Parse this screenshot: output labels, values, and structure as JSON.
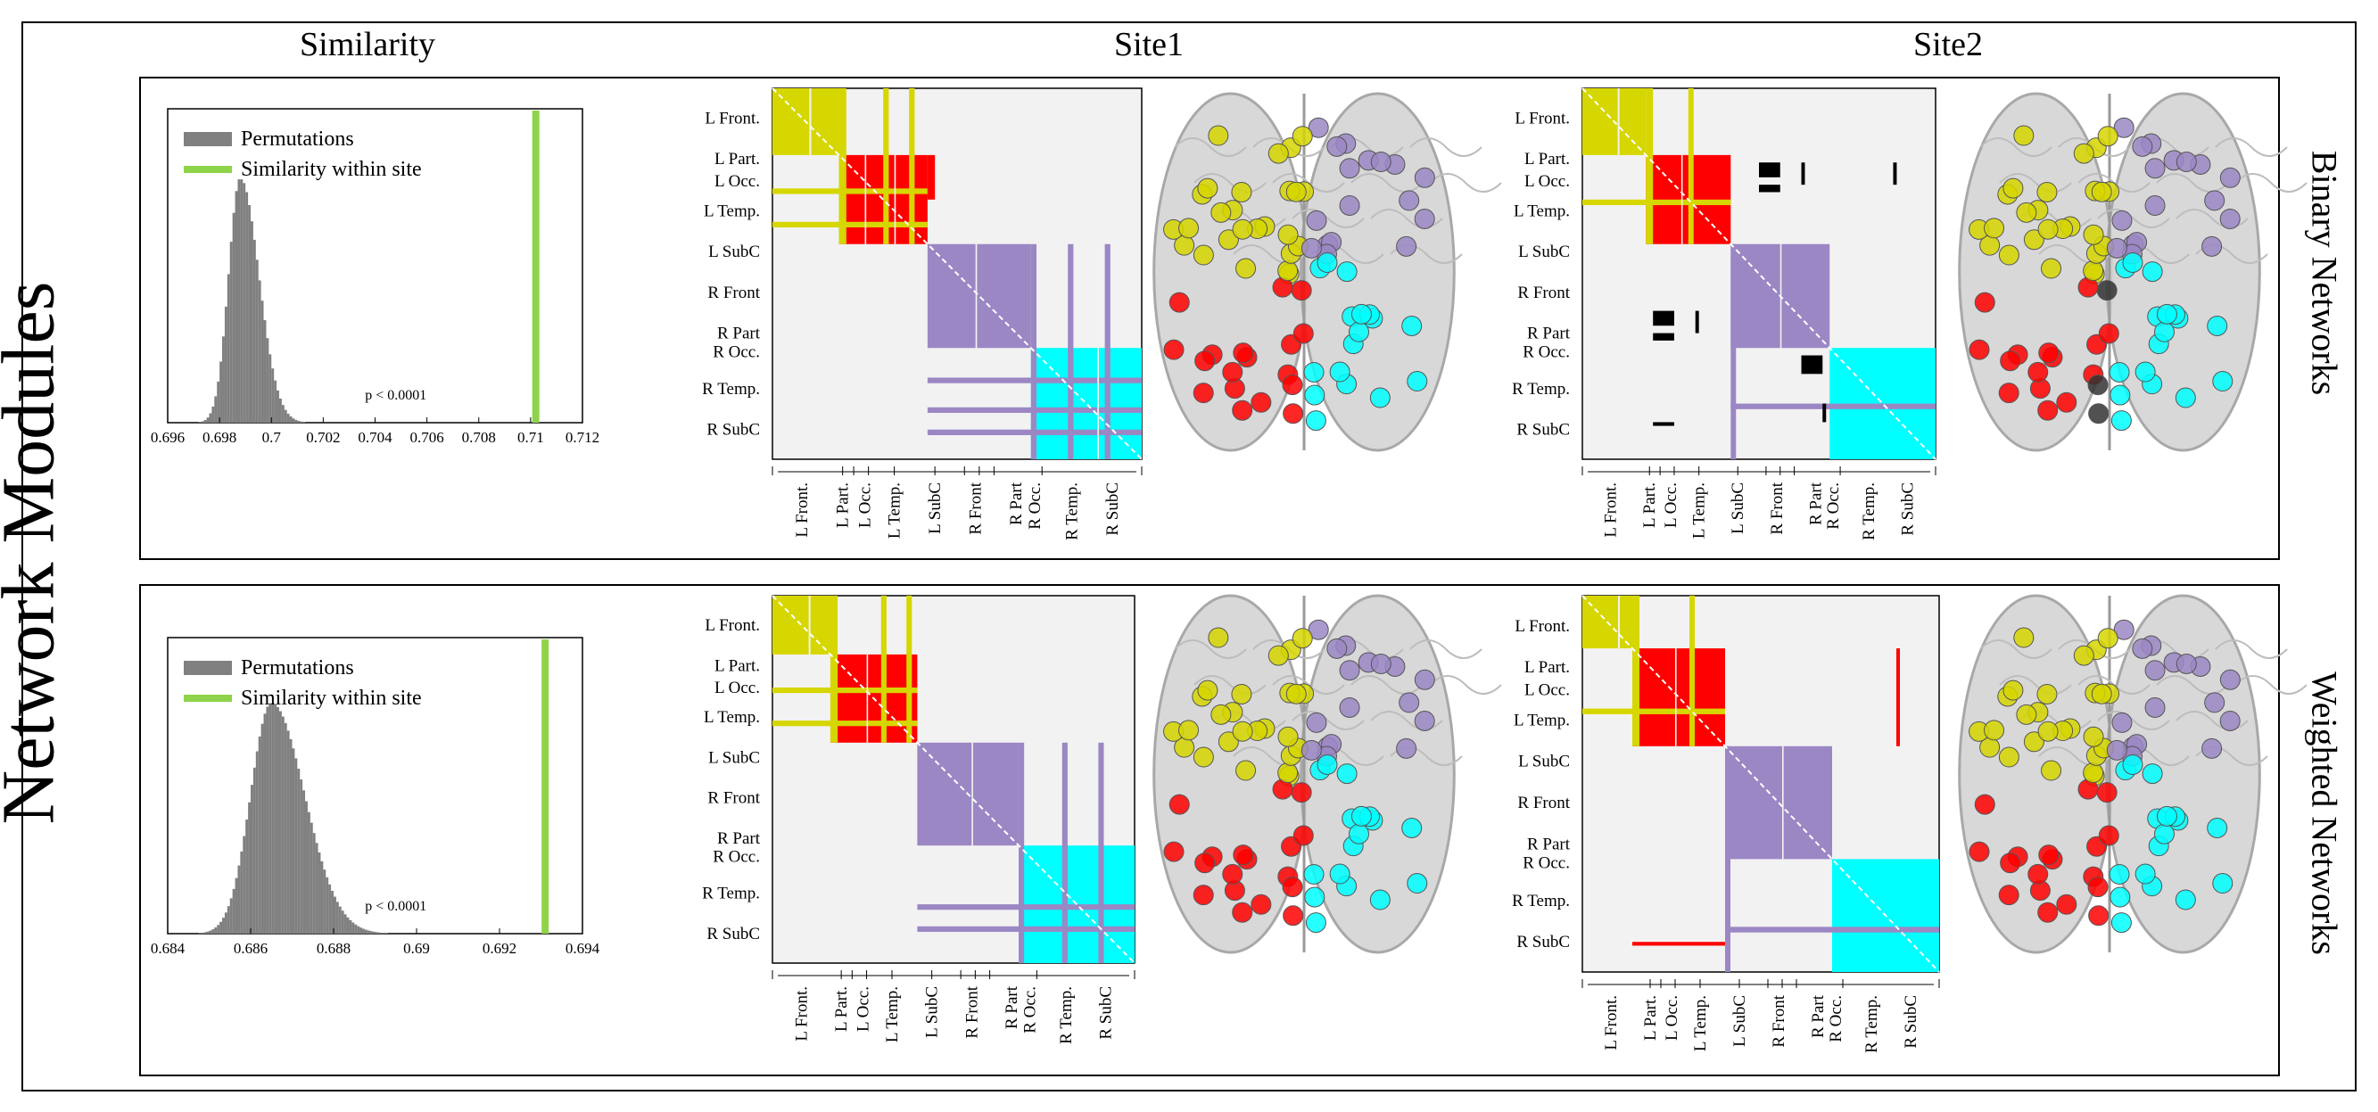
{
  "figure": {
    "title": "Network Modules",
    "columns": {
      "similarity": "Similarity",
      "site1": "Site1",
      "site2": "Site2"
    },
    "rows": [
      "Binary Networks",
      "Weighted Networks"
    ],
    "module_labels": [
      "L Front.",
      "L  Part.",
      "L Occ.",
      "L Temp.",
      "L SubC",
      "R Front",
      "R  Part",
      "R Occ.",
      "R Temp.",
      "R SubC"
    ],
    "module_colors": {
      "left_frontal": "#d6d600",
      "left_posterior": "#ff0000",
      "right_frontal": "#9b87c4",
      "right_posterior": "#00ffff",
      "between_site": "#000000",
      "background": "#f2f2f2"
    }
  },
  "chart_data": [
    {
      "type": "histogram",
      "row": "Binary Networks",
      "legend": [
        "Permutations",
        "Similarity within site"
      ],
      "xticks": [
        "0.696",
        "0.698",
        "0.7",
        "0.702",
        "0.704",
        "0.706",
        "0.708",
        "0.71",
        "0.712"
      ],
      "xlim": [
        0.696,
        0.712
      ],
      "distribution_mean": 0.6988,
      "distribution_sd": 0.00045,
      "observed_similarity": 0.7102,
      "p_value_text": "p < 0.0001",
      "bar_color": "#808080",
      "line_color": "#8ed44a"
    },
    {
      "type": "histogram",
      "row": "Weighted Networks",
      "legend": [
        "Permutations",
        "Similarity within site"
      ],
      "xticks": [
        "0.684",
        "0.686",
        "0.688",
        "0.69",
        "0.692",
        "0.694"
      ],
      "xlim": [
        0.684,
        0.694
      ],
      "distribution_mean": 0.6865,
      "distribution_sd": 0.0005,
      "observed_similarity": 0.6931,
      "p_value_text": "p < 0.0001",
      "bar_color": "#808080",
      "line_color": "#8ed44a"
    }
  ]
}
